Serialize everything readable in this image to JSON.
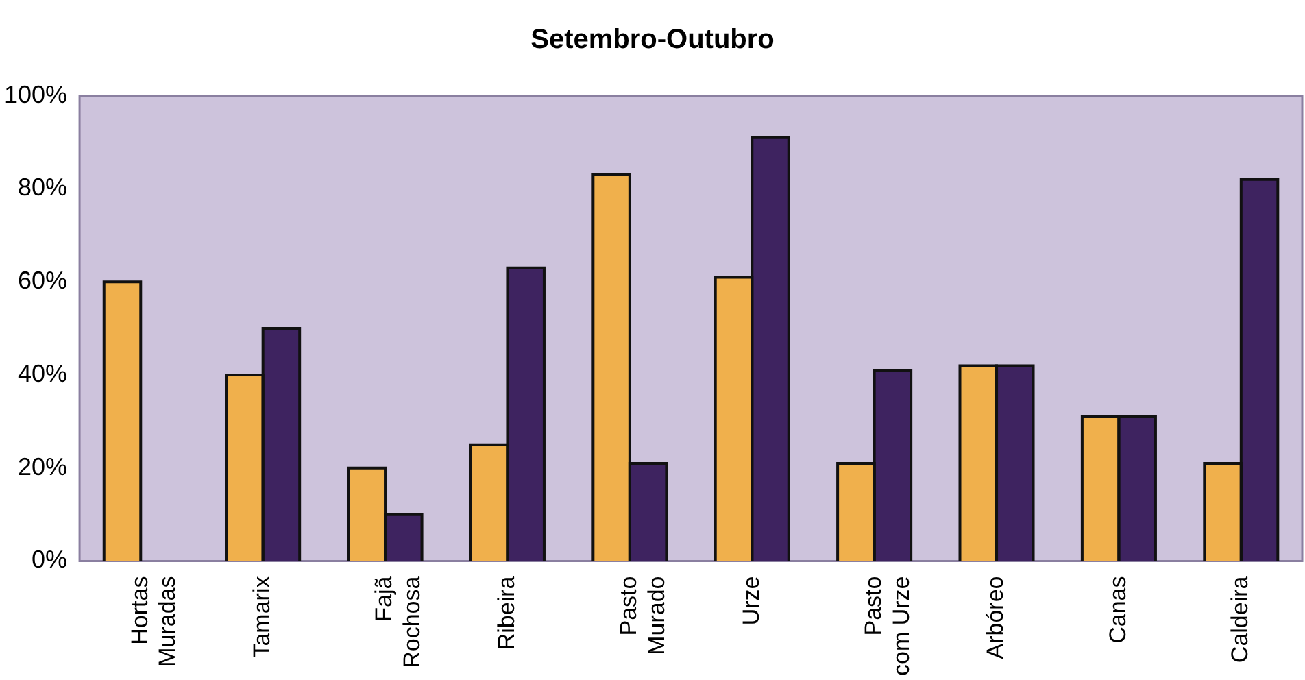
{
  "chart_data": {
    "type": "bar",
    "title": "Setembro-Outubro",
    "categories": [
      "Hortas\nMuradas",
      "Tamarix",
      "Fajã\nRochosa",
      "Ribeira",
      "Pasto\nMurado",
      "Urze",
      "Pasto\ncom Urze",
      "Arbóreo",
      "Canas",
      "Caldeira"
    ],
    "series": [
      {
        "color": "#f0b04c",
        "values": [
          60,
          40,
          20,
          25,
          83,
          61,
          21,
          42,
          31,
          21
        ]
      },
      {
        "color": "#3e2360",
        "values": [
          null,
          50,
          10,
          63,
          21,
          91,
          41,
          42,
          31,
          82
        ]
      }
    ],
    "ylim": [
      0,
      100
    ],
    "yticks": [
      {
        "value": 0,
        "label": "0%"
      },
      {
        "value": 20,
        "label": "20%"
      },
      {
        "value": 40,
        "label": "40%"
      },
      {
        "value": 60,
        "label": "60%"
      },
      {
        "value": 80,
        "label": "80%"
      },
      {
        "value": 100,
        "label": "100%"
      }
    ],
    "grid": false,
    "legend": false
  }
}
